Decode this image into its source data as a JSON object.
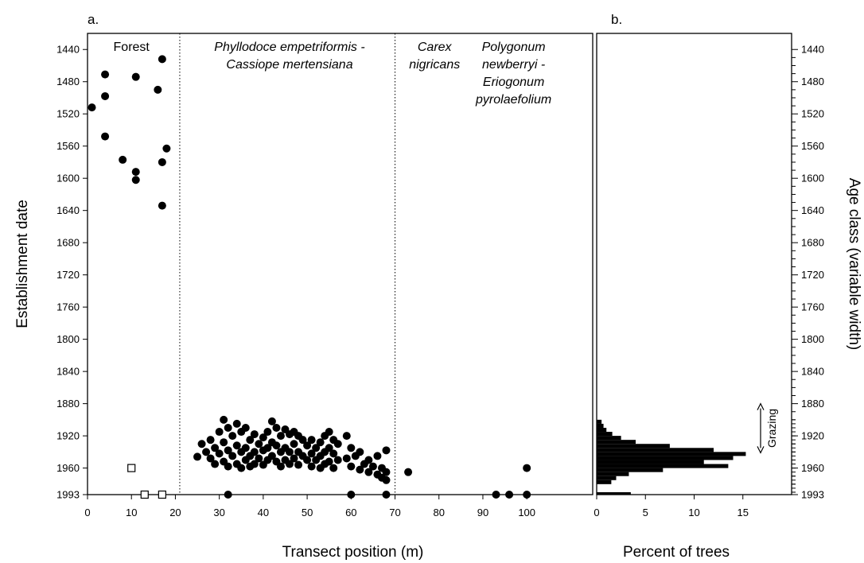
{
  "chart_data": [
    {
      "type": "scatter",
      "panel": "a.",
      "xlabel": "Transect position (m)",
      "ylabel": "Establishment date",
      "xlim": [
        0,
        115
      ],
      "ylim": [
        1993,
        1420
      ],
      "x_ticks": [
        0,
        10,
        20,
        30,
        40,
        50,
        60,
        70,
        80,
        90,
        100
      ],
      "y_ticks": [
        1440,
        1480,
        1520,
        1560,
        1600,
        1640,
        1680,
        1720,
        1760,
        1800,
        1840,
        1880,
        1920,
        1960,
        1993
      ],
      "zone_boundaries": [
        21,
        70
      ],
      "zones": [
        {
          "lines": [
            "Forest"
          ],
          "x": 10,
          "italic": false
        },
        {
          "lines": [
            "Phyllodoce empetriformis -",
            "Cassiope mertensiana"
          ],
          "x": 46,
          "italic": true
        },
        {
          "lines": [
            "Carex",
            "nigricans"
          ],
          "x": 79,
          "italic": true
        },
        {
          "lines": [
            "Polygonum",
            "newberryi -",
            "Eriogonum",
            "pyrolaefolium"
          ],
          "x": 97,
          "italic": true
        }
      ],
      "series": [
        {
          "marker": "filled-circle",
          "points": [
            [
              1,
              1512
            ],
            [
              4,
              1471
            ],
            [
              4,
              1498
            ],
            [
              4,
              1548
            ],
            [
              8,
              1577
            ],
            [
              11,
              1474
            ],
            [
              11,
              1592
            ],
            [
              11,
              1602
            ],
            [
              16,
              1490
            ],
            [
              17,
              1452
            ],
            [
              17,
              1580
            ],
            [
              17,
              1634
            ],
            [
              18,
              1563
            ],
            [
              25,
              1946
            ],
            [
              26,
              1930
            ],
            [
              27,
              1940
            ],
            [
              28,
              1925
            ],
            [
              28,
              1948
            ],
            [
              29,
              1935
            ],
            [
              29,
              1955
            ],
            [
              30,
              1915
            ],
            [
              30,
              1942
            ],
            [
              31,
              1900
            ],
            [
              31,
              1928
            ],
            [
              31,
              1952
            ],
            [
              32,
              1910
            ],
            [
              32,
              1938
            ],
            [
              32,
              1958
            ],
            [
              33,
              1920
            ],
            [
              33,
              1945
            ],
            [
              34,
              1905
            ],
            [
              34,
              1932
            ],
            [
              34,
              1955
            ],
            [
              35,
              1915
            ],
            [
              35,
              1940
            ],
            [
              35,
              1960
            ],
            [
              36,
              1910
            ],
            [
              36,
              1935
            ],
            [
              36,
              1950
            ],
            [
              37,
              1925
            ],
            [
              37,
              1945
            ],
            [
              37,
              1958
            ],
            [
              38,
              1918
            ],
            [
              38,
              1940
            ],
            [
              38,
              1955
            ],
            [
              39,
              1930
            ],
            [
              39,
              1948
            ],
            [
              40,
              1922
            ],
            [
              40,
              1938
            ],
            [
              40,
              1956
            ],
            [
              41,
              1915
            ],
            [
              41,
              1935
            ],
            [
              41,
              1950
            ],
            [
              42,
              1902
            ],
            [
              42,
              1928
            ],
            [
              42,
              1945
            ],
            [
              43,
              1910
            ],
            [
              43,
              1932
            ],
            [
              43,
              1952
            ],
            [
              44,
              1920
            ],
            [
              44,
              1940
            ],
            [
              44,
              1958
            ],
            [
              45,
              1912
            ],
            [
              45,
              1935
            ],
            [
              45,
              1950
            ],
            [
              46,
              1918
            ],
            [
              46,
              1940
            ],
            [
              46,
              1955
            ],
            [
              47,
              1915
            ],
            [
              47,
              1930
            ],
            [
              47,
              1948
            ],
            [
              48,
              1920
            ],
            [
              48,
              1940
            ],
            [
              48,
              1956
            ],
            [
              49,
              1925
            ],
            [
              49,
              1945
            ],
            [
              50,
              1932
            ],
            [
              50,
              1950
            ],
            [
              51,
              1925
            ],
            [
              51,
              1942
            ],
            [
              51,
              1958
            ],
            [
              52,
              1935
            ],
            [
              52,
              1950
            ],
            [
              53,
              1928
            ],
            [
              53,
              1945
            ],
            [
              53,
              1960
            ],
            [
              54,
              1920
            ],
            [
              54,
              1940
            ],
            [
              54,
              1955
            ],
            [
              55,
              1915
            ],
            [
              55,
              1935
            ],
            [
              55,
              1952
            ],
            [
              56,
              1925
            ],
            [
              56,
              1942
            ],
            [
              56,
              1960
            ],
            [
              57,
              1930
            ],
            [
              57,
              1950
            ],
            [
              59,
              1920
            ],
            [
              59,
              1948
            ],
            [
              60,
              1935
            ],
            [
              60,
              1958
            ],
            [
              61,
              1945
            ],
            [
              62,
              1940
            ],
            [
              62,
              1962
            ],
            [
              63,
              1955
            ],
            [
              64,
              1950
            ],
            [
              64,
              1965
            ],
            [
              65,
              1958
            ],
            [
              66,
              1945
            ],
            [
              66,
              1968
            ],
            [
              67,
              1960
            ],
            [
              67,
              1972
            ],
            [
              68,
              1938
            ],
            [
              68,
              1965
            ],
            [
              68,
              1975
            ],
            [
              73,
              1965
            ],
            [
              100,
              1960
            ],
            [
              32,
              1993
            ],
            [
              60,
              1993
            ],
            [
              68,
              1993
            ],
            [
              93,
              1993
            ],
            [
              96,
              1993
            ],
            [
              100,
              1993
            ]
          ]
        },
        {
          "marker": "open-square",
          "points": [
            [
              10,
              1960
            ],
            [
              13,
              1993
            ],
            [
              17,
              1993
            ]
          ]
        }
      ]
    },
    {
      "type": "bar",
      "orientation": "horizontal",
      "panel": "b.",
      "xlabel": "Percent of trees",
      "ylabel": "Age class (variable width)",
      "xlim": [
        0,
        20
      ],
      "x_ticks": [
        0,
        5,
        10,
        15
      ],
      "y_ticks": [
        1440,
        1480,
        1520,
        1560,
        1600,
        1640,
        1680,
        1720,
        1760,
        1800,
        1840,
        1880,
        1920,
        1960,
        1993
      ],
      "minor_tick_interval": 10,
      "bars": [
        {
          "from": 1900,
          "to": 1905,
          "value": 0.5
        },
        {
          "from": 1905,
          "to": 1910,
          "value": 0.7
        },
        {
          "from": 1910,
          "to": 1915,
          "value": 1.0
        },
        {
          "from": 1915,
          "to": 1920,
          "value": 1.6
        },
        {
          "from": 1920,
          "to": 1925,
          "value": 2.5
        },
        {
          "from": 1925,
          "to": 1930,
          "value": 4.0
        },
        {
          "from": 1930,
          "to": 1935,
          "value": 7.5
        },
        {
          "from": 1935,
          "to": 1940,
          "value": 12.0
        },
        {
          "from": 1940,
          "to": 1945,
          "value": 15.3
        },
        {
          "from": 1945,
          "to": 1950,
          "value": 14.0
        },
        {
          "from": 1950,
          "to": 1955,
          "value": 11.0
        },
        {
          "from": 1955,
          "to": 1960,
          "value": 13.5
        },
        {
          "from": 1960,
          "to": 1965,
          "value": 6.8
        },
        {
          "from": 1965,
          "to": 1970,
          "value": 3.3
        },
        {
          "from": 1970,
          "to": 1975,
          "value": 2.0
        },
        {
          "from": 1975,
          "to": 1980,
          "value": 1.5
        },
        {
          "from": 1990,
          "to": 1993,
          "value": 3.5
        }
      ],
      "annotation": {
        "text": "Grazing",
        "from": 1880,
        "to": 1941
      }
    }
  ]
}
